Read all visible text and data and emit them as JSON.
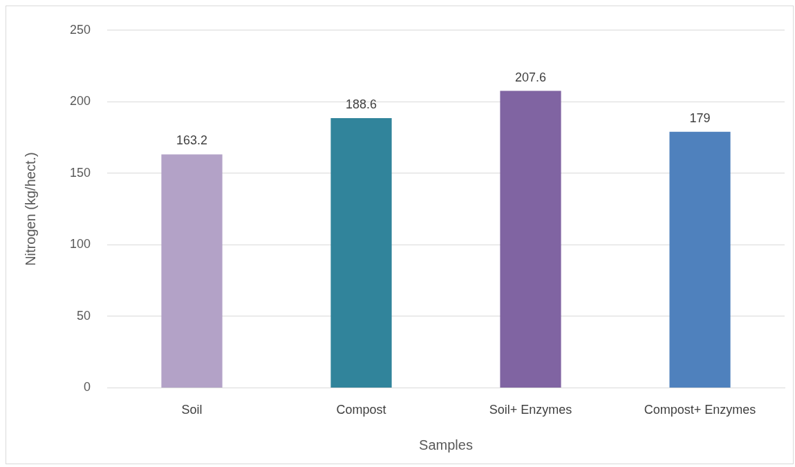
{
  "chart_data": {
    "type": "bar",
    "xlabel": "Samples",
    "ylabel": "Nitrogen (kg/hect.)",
    "categories": [
      "Soil",
      "Compost",
      "Soil+ Enzymes",
      "Compost+ Enzymes"
    ],
    "values": [
      163.2,
      188.6,
      207.6,
      179
    ],
    "colors": [
      "#b3a2c7",
      "#31849b",
      "#8064a2",
      "#4f81bd"
    ],
    "ylim": [
      0,
      250
    ],
    "yticks": [
      0,
      50,
      100,
      150,
      200,
      250
    ],
    "grid": "y",
    "data_labels": true,
    "legend": false
  }
}
